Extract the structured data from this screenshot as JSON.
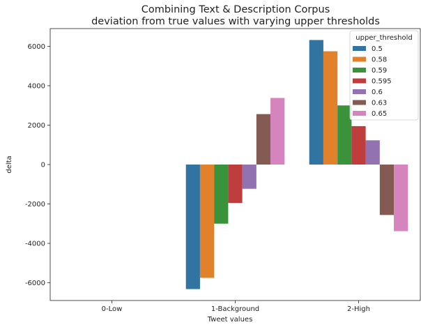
{
  "chart_data": {
    "type": "bar",
    "title": "Combining Text & Description Corpus",
    "subtitle": "deviation from true values with varying upper thresholds",
    "xlabel": "Tweet values",
    "ylabel": "delta",
    "categories": [
      "0-Low",
      "1-Background",
      "2-High"
    ],
    "ylim": [
      -6900,
      6900
    ],
    "yticks": [
      -6000,
      -4000,
      -2000,
      0,
      2000,
      4000,
      6000
    ],
    "legend": {
      "title": "upper_threshold",
      "placement": "top-right"
    },
    "series": [
      {
        "name": "0.5",
        "color": "#3274a1",
        "values": [
          0,
          -6320,
          6320
        ]
      },
      {
        "name": "0.58",
        "color": "#e1812c",
        "values": [
          0,
          -5750,
          5750
        ]
      },
      {
        "name": "0.59",
        "color": "#3a923a",
        "values": [
          0,
          -3000,
          3000
        ]
      },
      {
        "name": "0.595",
        "color": "#c03d3e",
        "values": [
          0,
          -1950,
          1950
        ]
      },
      {
        "name": "0.6",
        "color": "#9372b2",
        "values": [
          0,
          -1230,
          1230
        ]
      },
      {
        "name": "0.63",
        "color": "#845b53",
        "values": [
          0,
          2560,
          -2560
        ]
      },
      {
        "name": "0.65",
        "color": "#d684bd",
        "values": [
          0,
          3380,
          -3380
        ]
      }
    ]
  }
}
